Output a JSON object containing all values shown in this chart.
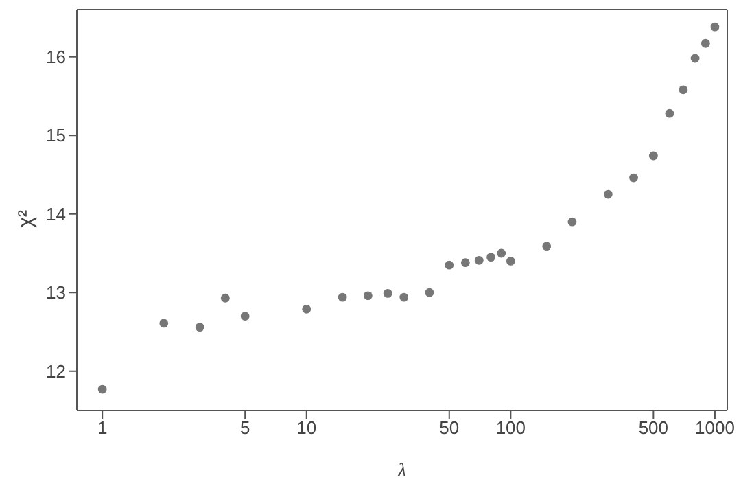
{
  "chart_data": {
    "type": "scatter",
    "xlabel": "λ",
    "ylabel": "χ²",
    "log": "x",
    "grid": false,
    "marker": "circle",
    "x": [
      1,
      2,
      3,
      4,
      5,
      10,
      15,
      20,
      25,
      30,
      40,
      50,
      60,
      70,
      80,
      90,
      100,
      150,
      200,
      300,
      400,
      500,
      600,
      700,
      800,
      900,
      1000
    ],
    "series": [
      {
        "color": "#777777",
        "values": [
          11.77,
          12.61,
          12.56,
          12.93,
          12.7,
          12.79,
          12.94,
          12.96,
          12.99,
          12.94,
          13.0,
          13.35,
          13.38,
          13.41,
          13.45,
          13.5,
          13.4,
          13.59,
          13.9,
          14.25,
          14.46,
          14.74,
          15.28,
          15.58,
          15.98,
          16.17,
          16.38
        ]
      }
    ],
    "xlim": [
      0.75,
      1150
    ],
    "xticks": [
      1,
      5,
      10,
      50,
      100,
      500,
      1000
    ],
    "ylim": [
      11.5,
      16.6
    ],
    "yticks": [
      12,
      13,
      14,
      15,
      16
    ]
  }
}
